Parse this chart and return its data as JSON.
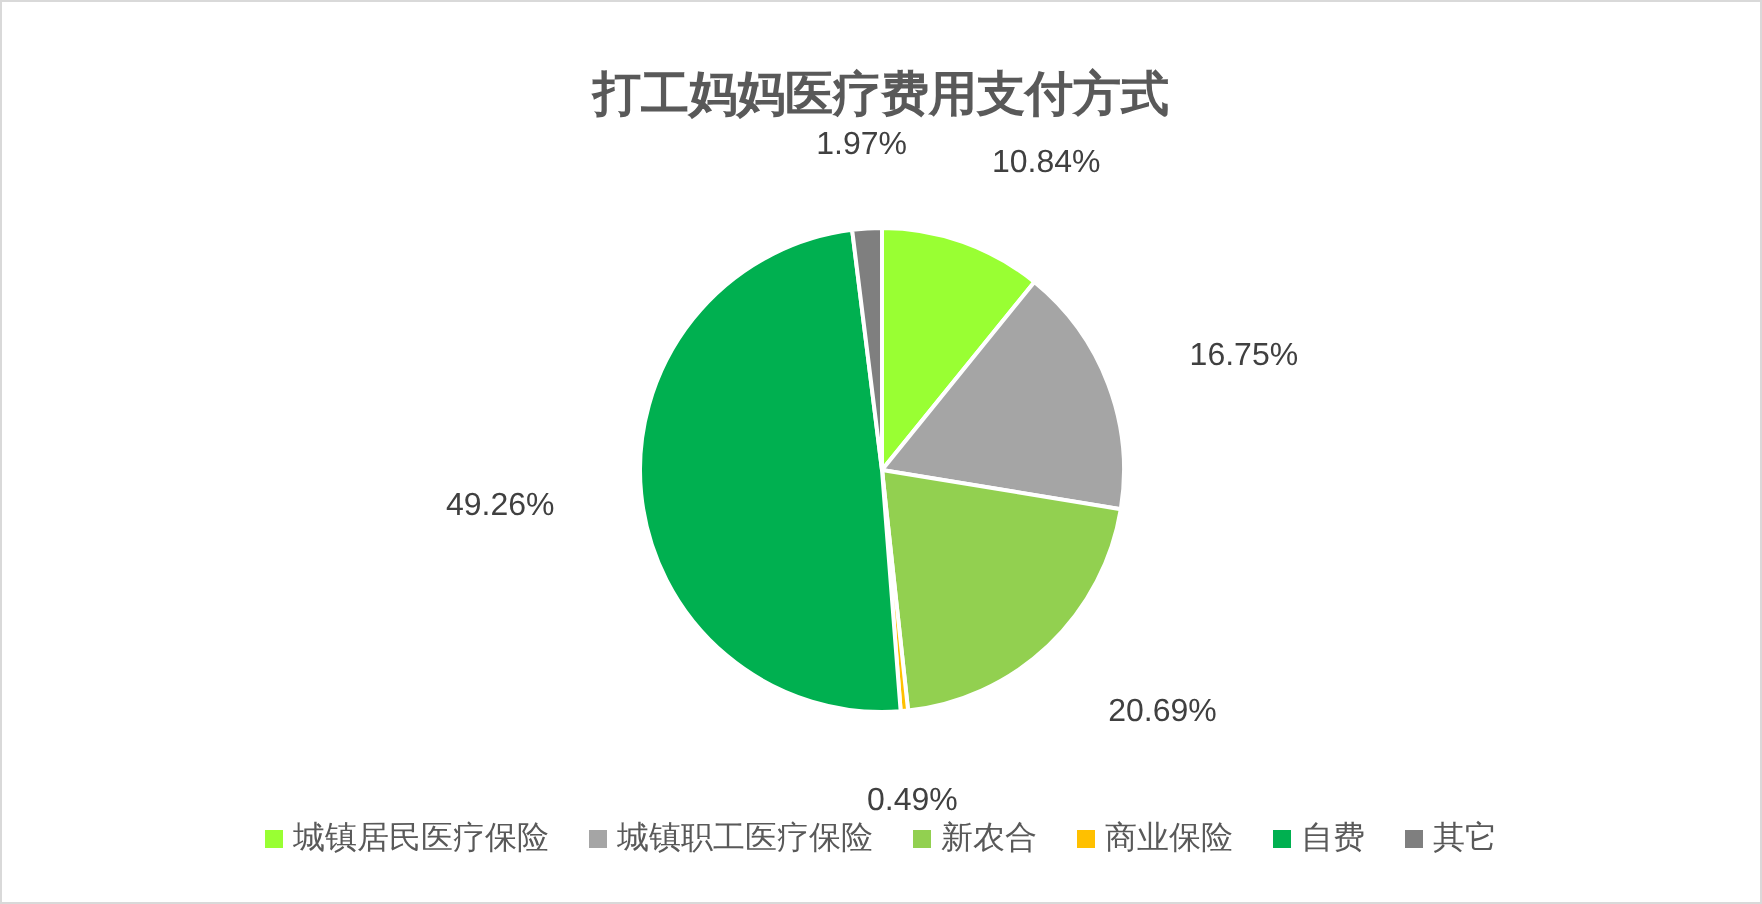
{
  "chart_data": {
    "type": "pie",
    "title": "打工妈妈医疗费用支付方式",
    "categories": [
      "城镇居民医疗保险",
      "城镇职工医疗保险",
      "新农合",
      "商业保险",
      "自费",
      "其它"
    ],
    "values": [
      10.84,
      16.75,
      20.69,
      0.49,
      49.26,
      1.97
    ],
    "colors": [
      "#99ff33",
      "#a5a5a5",
      "#92d050",
      "#ffc000",
      "#00b050",
      "#7f7f7f"
    ],
    "value_labels": [
      "10.84%",
      "16.75%",
      "20.69%",
      "0.49%",
      "49.26%",
      "1.97%"
    ],
    "legend": "bottom"
  }
}
